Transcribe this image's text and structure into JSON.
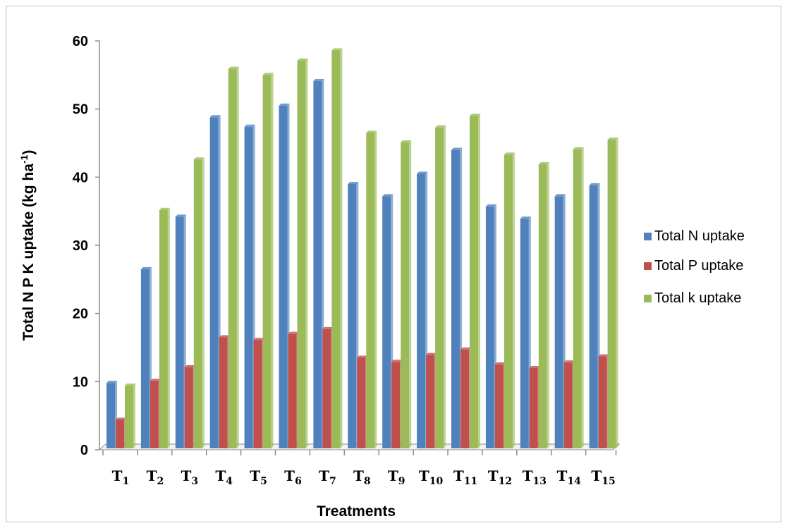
{
  "chart_data": {
    "type": "bar",
    "ylabel": "Total N P K uptake (kg ha",
    "ylabel_sup": "-1",
    "ylabel_end": ")",
    "xlabel": "Treatments",
    "ylim": [
      0,
      60
    ],
    "yticks": [
      0,
      10,
      20,
      30,
      40,
      50,
      60
    ],
    "grid": false,
    "legend_position": "right",
    "categories": [
      {
        "base": "T",
        "sub": "1"
      },
      {
        "base": "T",
        "sub": "2"
      },
      {
        "base": "T",
        "sub": "3"
      },
      {
        "base": "T",
        "sub": "4"
      },
      {
        "base": "T",
        "sub": "5"
      },
      {
        "base": "T",
        "sub": "6"
      },
      {
        "base": "T",
        "sub": "7"
      },
      {
        "base": "T",
        "sub": "8"
      },
      {
        "base": "T",
        "sub": "9"
      },
      {
        "base": "T",
        "sub": "10"
      },
      {
        "base": "T",
        "sub": "11"
      },
      {
        "base": "T",
        "sub": "12"
      },
      {
        "base": "T",
        "sub": "13"
      },
      {
        "base": "T",
        "sub": "14"
      },
      {
        "base": "T",
        "sub": "15"
      }
    ],
    "series": [
      {
        "name": "Total N uptake",
        "color": "#4f81bd",
        "values": [
          9.8,
          26.5,
          34.2,
          48.8,
          47.4,
          50.5,
          54.1,
          39.0,
          37.2,
          40.5,
          44.0,
          35.7,
          33.9,
          37.2,
          38.8
        ]
      },
      {
        "name": "Total P uptake",
        "color": "#c0504d",
        "values": [
          4.4,
          10.1,
          12.1,
          16.5,
          16.1,
          17.0,
          17.7,
          13.5,
          12.9,
          13.9,
          14.7,
          12.5,
          12.0,
          12.8,
          13.7
        ]
      },
      {
        "name": "Total k uptake",
        "color": "#9bbb59",
        "values": [
          9.4,
          35.2,
          42.6,
          55.9,
          55.0,
          57.1,
          58.6,
          46.5,
          45.1,
          47.3,
          49.0,
          43.3,
          41.9,
          44.1,
          45.5
        ]
      }
    ]
  }
}
